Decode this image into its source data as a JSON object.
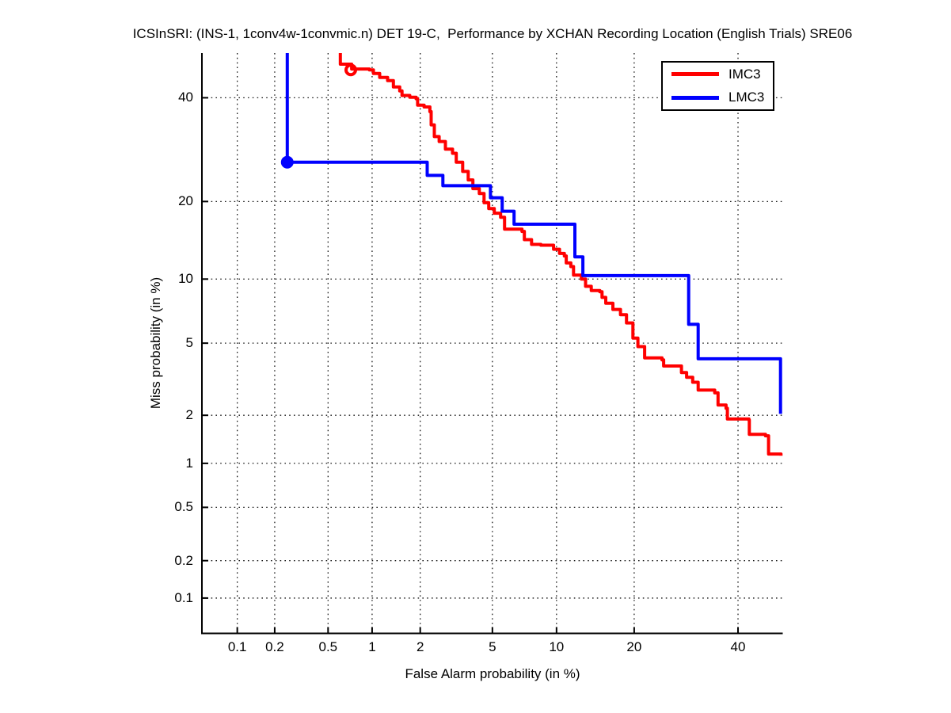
{
  "figure": {
    "title": "ICSInSRI: (INS-1, 1conv4w-1convmic.n) DET 19-C,  Performance by XCHAN Recording Location (English Trials) SRE06",
    "background_color": "#ffffff"
  },
  "axes": {
    "x_label": "False Alarm probability (in %)",
    "y_label": "Miss probability (in %)",
    "x_tick_labels": [
      "0.1",
      "0.2",
      "0.5",
      "1",
      "2",
      "5",
      "10",
      "20",
      "40"
    ],
    "y_tick_labels": [
      "40",
      "20",
      "10",
      "5",
      "2",
      "1",
      "0.5",
      "0.2",
      "0.1"
    ],
    "x_tick_values": [
      0.1,
      0.2,
      0.5,
      1,
      2,
      5,
      10,
      20,
      40
    ],
    "y_tick_values": [
      40,
      20,
      10,
      5,
      2,
      1,
      0.5,
      0.2,
      0.1
    ],
    "axis_color": "#000000",
    "grid_color": "#1a1a1a"
  },
  "chart_data": {
    "type": "line",
    "subtype": "DET curve (step plot), probit scale on both axes",
    "title": "ICSInSRI: (INS-1, 1conv4w-1convmic.n) DET 19-C,  Performance by XCHAN Recording Location (English Trials) SRE06",
    "xlabel": "False Alarm probability (in %)",
    "ylabel": "Miss probability (in %)",
    "xlim_pct": [
      0.05,
      50
    ],
    "ylim_pct": [
      0.05,
      50
    ],
    "grid": "dotted",
    "legend_position": "top-right",
    "series": [
      {
        "name": "IMC3",
        "color": "#ff0000",
        "marker_point": {
          "fa_pct": 0.72,
          "miss_pct": 46.2
        },
        "points_fa_miss_pct": [
          [
            0.61,
            50
          ],
          [
            0.61,
            47.5
          ],
          [
            0.73,
            46.4
          ],
          [
            0.96,
            46.2
          ],
          [
            1.02,
            45.4
          ],
          [
            1.12,
            44.5
          ],
          [
            1.26,
            43.8
          ],
          [
            1.37,
            42.4
          ],
          [
            1.5,
            41.5
          ],
          [
            1.55,
            40.5
          ],
          [
            1.73,
            40.1
          ],
          [
            1.89,
            39.8
          ],
          [
            1.93,
            38.4
          ],
          [
            2.11,
            38.0
          ],
          [
            2.28,
            37.0
          ],
          [
            2.32,
            34.2
          ],
          [
            2.42,
            31.8
          ],
          [
            2.58,
            30.8
          ],
          [
            2.8,
            29.3
          ],
          [
            3.07,
            28.5
          ],
          [
            3.22,
            26.8
          ],
          [
            3.49,
            25.1
          ],
          [
            3.74,
            23.6
          ],
          [
            3.96,
            22.1
          ],
          [
            4.28,
            21.3
          ],
          [
            4.53,
            19.8
          ],
          [
            4.79,
            18.9
          ],
          [
            5.11,
            18.2
          ],
          [
            5.5,
            17.6
          ],
          [
            5.75,
            15.9
          ],
          [
            6.98,
            15.6
          ],
          [
            7.16,
            14.5
          ],
          [
            7.74,
            13.9
          ],
          [
            8.53,
            13.8
          ],
          [
            9.71,
            13.3
          ],
          [
            10.3,
            12.8
          ],
          [
            10.8,
            12.5
          ],
          [
            11.0,
            11.7
          ],
          [
            11.5,
            11.3
          ],
          [
            11.8,
            10.4
          ],
          [
            12.7,
            10.0
          ],
          [
            13.2,
            9.3
          ],
          [
            13.9,
            8.9
          ],
          [
            15.0,
            8.8
          ],
          [
            15.3,
            8.3
          ],
          [
            15.8,
            7.8
          ],
          [
            16.8,
            7.3
          ],
          [
            17.9,
            6.9
          ],
          [
            18.8,
            6.3
          ],
          [
            19.8,
            5.3
          ],
          [
            20.6,
            4.8
          ],
          [
            21.7,
            4.2
          ],
          [
            24.7,
            4.1
          ],
          [
            25.0,
            3.8
          ],
          [
            28.0,
            3.8
          ],
          [
            28.3,
            3.5
          ],
          [
            29.3,
            3.3
          ],
          [
            30.5,
            3.1
          ],
          [
            31.6,
            2.8
          ],
          [
            35.0,
            2.7
          ],
          [
            35.7,
            2.3
          ],
          [
            37.4,
            2.2
          ],
          [
            37.7,
            1.9
          ],
          [
            42.4,
            1.87
          ],
          [
            42.5,
            1.53
          ],
          [
            46.1,
            1.5
          ],
          [
            46.8,
            1.15
          ],
          [
            49.6,
            1.12
          ]
        ]
      },
      {
        "name": "LMC3",
        "color": "#0000ff",
        "marker_point": {
          "fa_pct": 0.25,
          "miss_pct": 26.8
        },
        "points_fa_miss_pct": [
          [
            0.25,
            50
          ],
          [
            0.25,
            26.8
          ],
          [
            2.2,
            26.8
          ],
          [
            2.2,
            24.4
          ],
          [
            2.71,
            24.4
          ],
          [
            2.71,
            22.6
          ],
          [
            4.89,
            22.6
          ],
          [
            4.89,
            20.6
          ],
          [
            5.6,
            20.6
          ],
          [
            5.6,
            18.5
          ],
          [
            6.4,
            18.5
          ],
          [
            6.4,
            16.6
          ],
          [
            11.95,
            16.6
          ],
          [
            11.95,
            12.4
          ],
          [
            12.88,
            12.4
          ],
          [
            12.88,
            10.35
          ],
          [
            29.7,
            10.35
          ],
          [
            29.7,
            6.2
          ],
          [
            31.6,
            6.2
          ],
          [
            31.6,
            4.15
          ],
          [
            49.5,
            4.15
          ],
          [
            49.5,
            2.04
          ]
        ]
      }
    ]
  },
  "legend": {
    "items": [
      {
        "label": "IMC3",
        "color": "#ff0000"
      },
      {
        "label": "LMC3",
        "color": "#0000ff"
      }
    ]
  }
}
